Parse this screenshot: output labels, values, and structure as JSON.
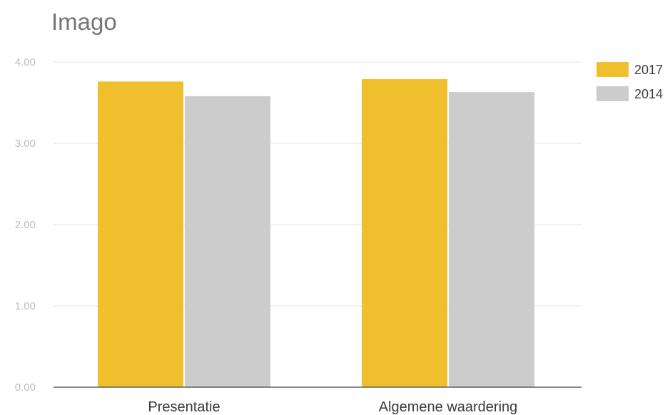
{
  "chart_data": {
    "type": "bar",
    "title": "Imago",
    "xlabel": "",
    "ylabel": "",
    "categories": [
      "Presentatie",
      "Algemene waardering"
    ],
    "series": [
      {
        "name": "2017",
        "values": [
          3.76,
          3.79
        ],
        "color": "#f0bf2e"
      },
      {
        "name": "2014",
        "values": [
          3.58,
          3.63
        ],
        "color": "#cccccc"
      }
    ],
    "ylim": [
      0,
      4
    ],
    "y_ticks": [
      "0.00",
      "1.00",
      "2.00",
      "3.00",
      "4.00"
    ],
    "grid": true,
    "legend_position": "right"
  }
}
